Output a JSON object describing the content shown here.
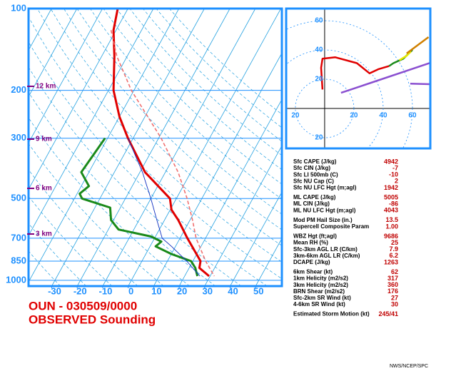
{
  "chart_data": [
    {
      "type": "skewt",
      "title": "OUN - 030509/0000",
      "subtitle": "OBSERVED Sounding",
      "ylog": true,
      "ylim": [
        100,
        1050
      ],
      "yticks": [
        100,
        200,
        300,
        500,
        700,
        850,
        1000
      ],
      "xlim": [
        -39.1,
        60.3
      ],
      "xticks": [
        -30,
        -20,
        -10,
        0,
        10,
        20,
        30,
        40,
        50
      ],
      "height_labels": [
        "12 km",
        "9 km",
        "6 km",
        "3 km"
      ],
      "series": [
        {
          "color": "#e00000",
          "style": "thick",
          "pressure": [
            100,
            120,
            150,
            200,
            250,
            300,
            400,
            500,
            550,
            600,
            700,
            850,
            900,
            965
          ],
          "values": [
            -64,
            -61,
            -55,
            -48,
            -40,
            -32,
            -18,
            -2.5,
            0.5,
            5.4,
            12.9,
            23,
            24,
            29.6
          ]
        },
        {
          "color": "#1a8a1a",
          "style": "thick",
          "pressure": [
            300,
            400,
            450,
            480,
            500,
            540,
            600,
            650,
            690,
            720,
            750,
            800,
            850,
            900,
            965
          ],
          "values": [
            -41,
            -43,
            -37,
            -39,
            -37,
            -24,
            -21,
            -16,
            -1.7,
            3.4,
            2.2,
            10,
            19.3,
            22.4,
            25
          ]
        },
        {
          "color": "#1030c0",
          "style": "thin",
          "pressure": [
            300,
            400,
            500,
            600,
            700,
            750,
            850,
            965
          ],
          "values": [
            -32,
            -19,
            -10,
            -3,
            3,
            8.4,
            17.6,
            26
          ]
        },
        {
          "color": "#f07070",
          "style": "dashed",
          "pressure": [
            120,
            150,
            200,
            300,
            400,
            500,
            600,
            700,
            850,
            965
          ],
          "values": [
            -62,
            -54,
            -41,
            -19,
            -5,
            4.2,
            11,
            16.3,
            25,
            31.6
          ]
        }
      ]
    },
    {
      "type": "hodograph",
      "xlim": [
        -26.3,
        72.2
      ],
      "ylim": [
        -27.3,
        68.3
      ],
      "rings": [
        20,
        40,
        60
      ],
      "series": [
        {
          "color": "#e00000",
          "u": [
            -1.5,
            -2.4,
            -1.5,
            7.3,
            22,
            30.7,
            36.6,
            44
          ],
          "v": [
            13,
            27.8,
            34,
            35,
            31,
            24,
            26.8,
            29
          ]
        },
        {
          "color": "#1a8a1a",
          "u": [
            44,
            47,
            53.7,
            60
          ],
          "v": [
            29,
            31,
            34,
            40
          ]
        },
        {
          "color": "#e8e800",
          "u": [
            51,
            56,
            59
          ],
          "v": [
            33,
            36,
            39
          ]
        },
        {
          "color": "#d08000",
          "u": [
            56,
            71
          ],
          "v": [
            37.6,
            48.8
          ]
        },
        {
          "color": "#8a4fd0",
          "u": [
            11.2,
            72.2
          ],
          "v": [
            10.7,
            31.2
          ]
        },
        {
          "color": "#8a4fd0",
          "u": [
            58.5,
            72.2
          ],
          "v": [
            17,
            16.6
          ]
        }
      ]
    }
  ],
  "parameters": [
    [
      {
        "label": "Sfc CAPE (J/kg)",
        "value": "4942"
      },
      {
        "label": "Sfc CIN (J/kg)",
        "value": "-7"
      },
      {
        "label": "Sfc LI 500mb (C)",
        "value": "-10"
      },
      {
        "label": "Sfc NU Cap (C)",
        "value": "2"
      },
      {
        "label": "Sfc NU LFC Hgt (m;agl)",
        "value": "1942"
      }
    ],
    [
      {
        "label": "ML CAPE (J/kg)",
        "value": "5005"
      },
      {
        "label": "ML CIN (J/kg)",
        "value": "-86"
      },
      {
        "label": "ML NU LFC Hgt (m;agl)",
        "value": "4043"
      }
    ],
    [
      {
        "label": "Mod PM Hail Size (in.)",
        "value": "13.5"
      },
      {
        "label": "Supercell Composite Param",
        "value": "1.00"
      }
    ],
    [
      {
        "label": "WBZ Hgt (ft;agl)",
        "value": "9686"
      },
      {
        "label": "Mean RH (%)",
        "value": "25"
      },
      {
        "label": "Sfc-3km AGL LR (C/km)",
        "value": "7.9"
      },
      {
        "label": "3km-6km AGL LR (C/km)",
        "value": "6.2"
      },
      {
        "label": "DCAPE (J/kg)",
        "value": "1263"
      }
    ],
    [
      {
        "label": "6km Shear (kt)",
        "value": "62"
      },
      {
        "label": "1km Helicity (m2/s2)",
        "value": "317"
      },
      {
        "label": "3km Helicity (m2/s2)",
        "value": "360"
      },
      {
        "label": "BRN Shear (m2/s2)",
        "value": "176"
      },
      {
        "label": "Sfc-2km SR Wind (kt)",
        "value": "27"
      },
      {
        "label": "4-6km SR Wind (kt)",
        "value": "30"
      }
    ],
    [
      {
        "label": "Estimated Storm Motion (kt)",
        "value": "245/41"
      }
    ]
  ],
  "footer": "NWS/NCEP/SPC"
}
